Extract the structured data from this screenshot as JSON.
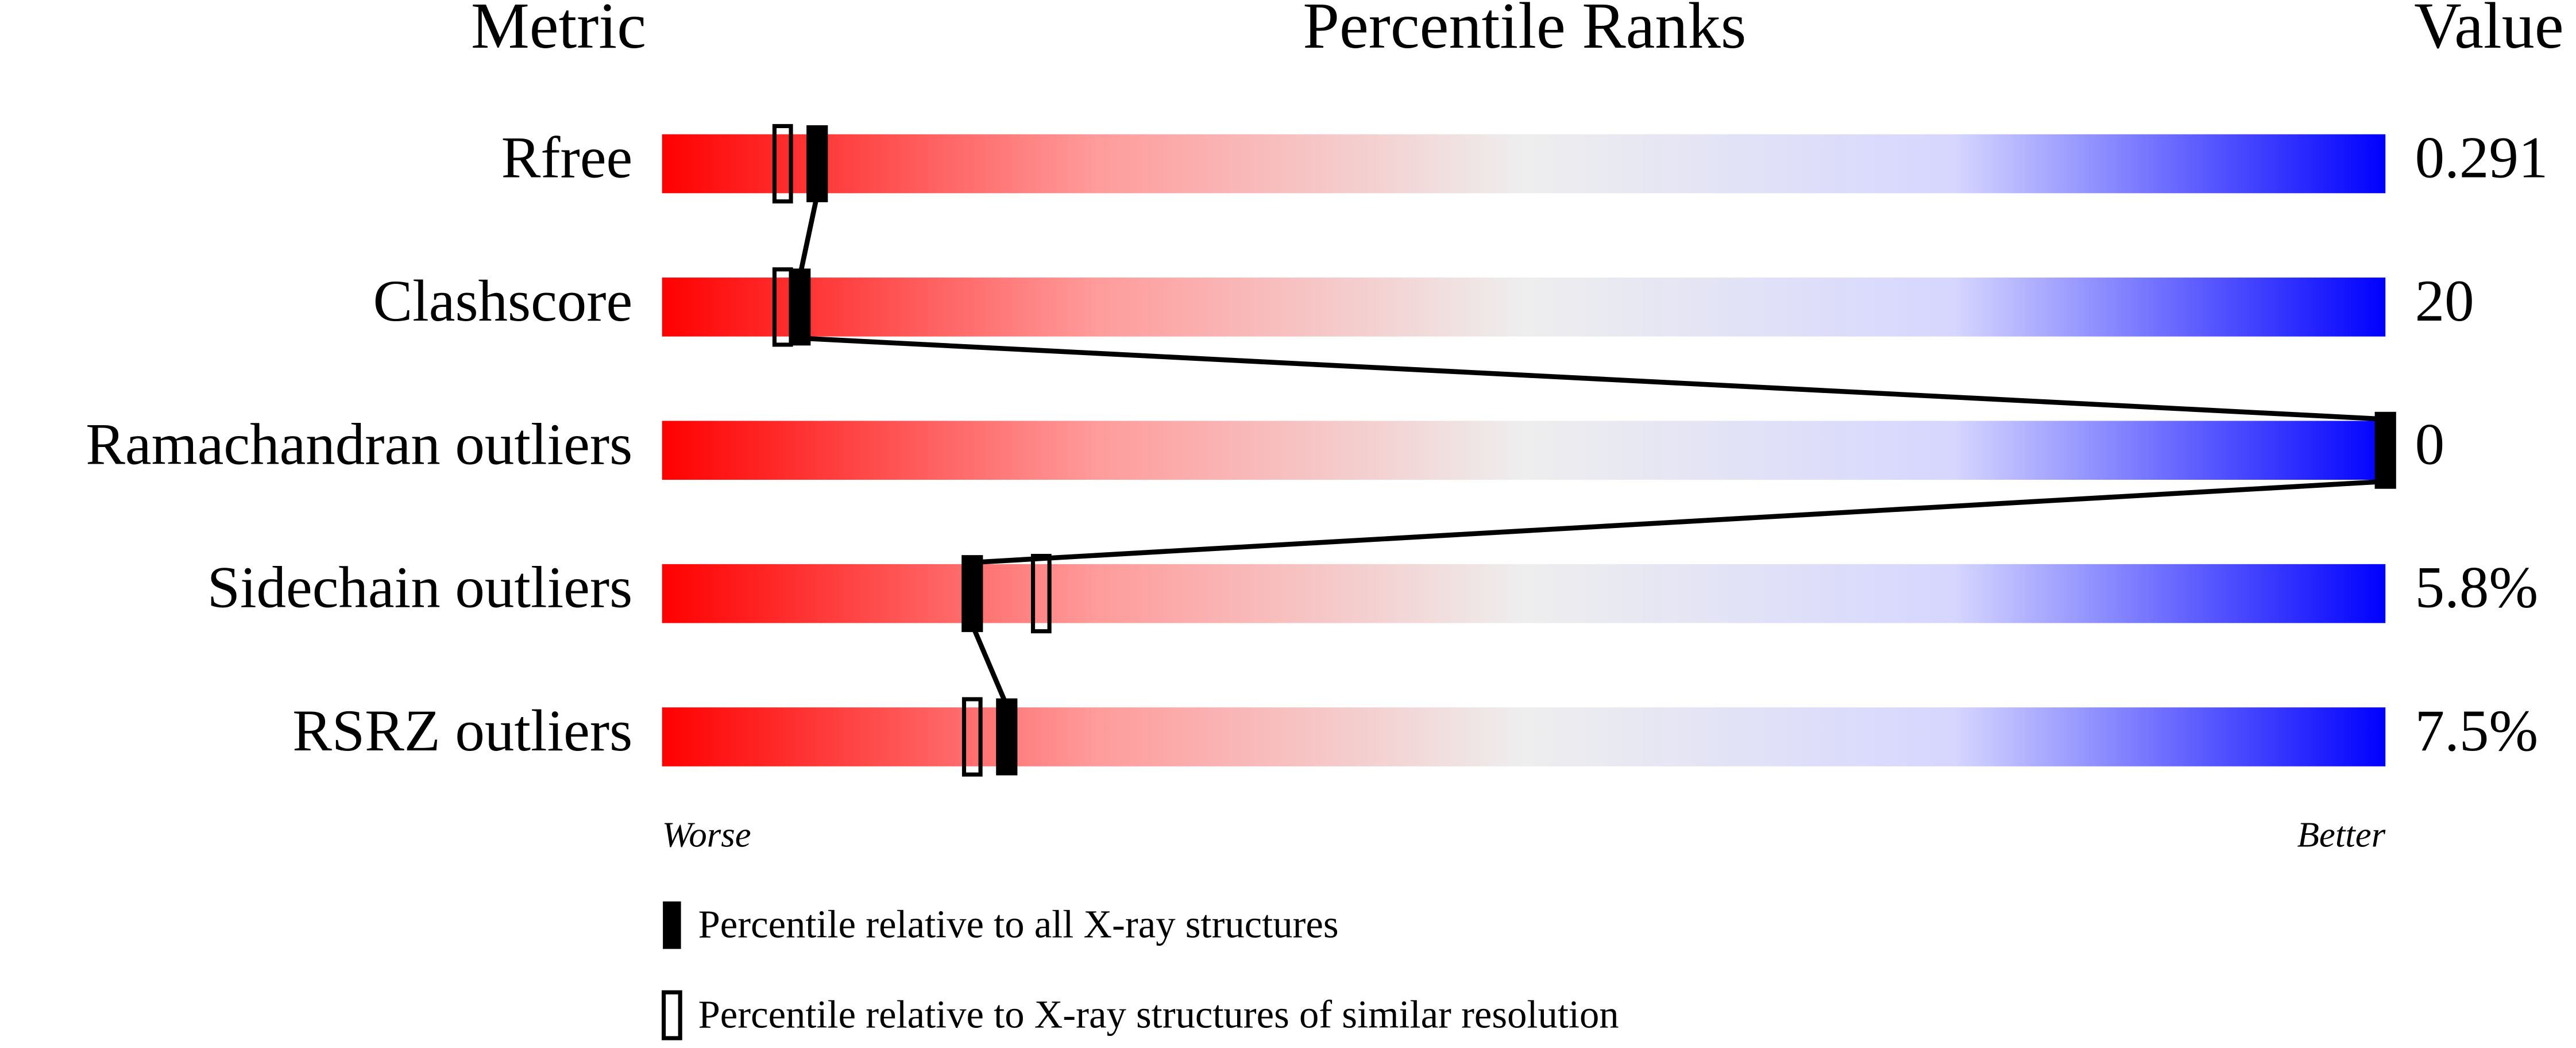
{
  "chart_data": {
    "type": "percentile",
    "headers": {
      "metric": "Metric",
      "ranks": "Percentile Ranks",
      "value": "Value"
    },
    "categories": [
      "Rfree",
      "Clashscore",
      "Ramachandran outliers",
      "Sidechain outliers",
      "RSRZ outliers"
    ],
    "value_column": [
      "0.291",
      "20",
      "0",
      "5.8%",
      "7.5%"
    ],
    "series": [
      {
        "name": "Percentile relative to all X-ray structures",
        "color": "#000000",
        "style": "filled",
        "values": [
          9,
          8,
          100,
          18,
          20
        ]
      },
      {
        "name": "Percentile relative to X-ray structures of similar resolution",
        "color": "#000000",
        "style": "outline",
        "values": [
          7,
          7,
          null,
          22,
          18
        ]
      }
    ],
    "xlim": [
      0,
      100
    ],
    "scale_labels": {
      "low": "Worse",
      "high": "Better"
    },
    "gradient": [
      "#ff0000",
      "#ff9a9a",
      "#eeeeee",
      "#d6d6ff",
      "#0000ff"
    ]
  }
}
